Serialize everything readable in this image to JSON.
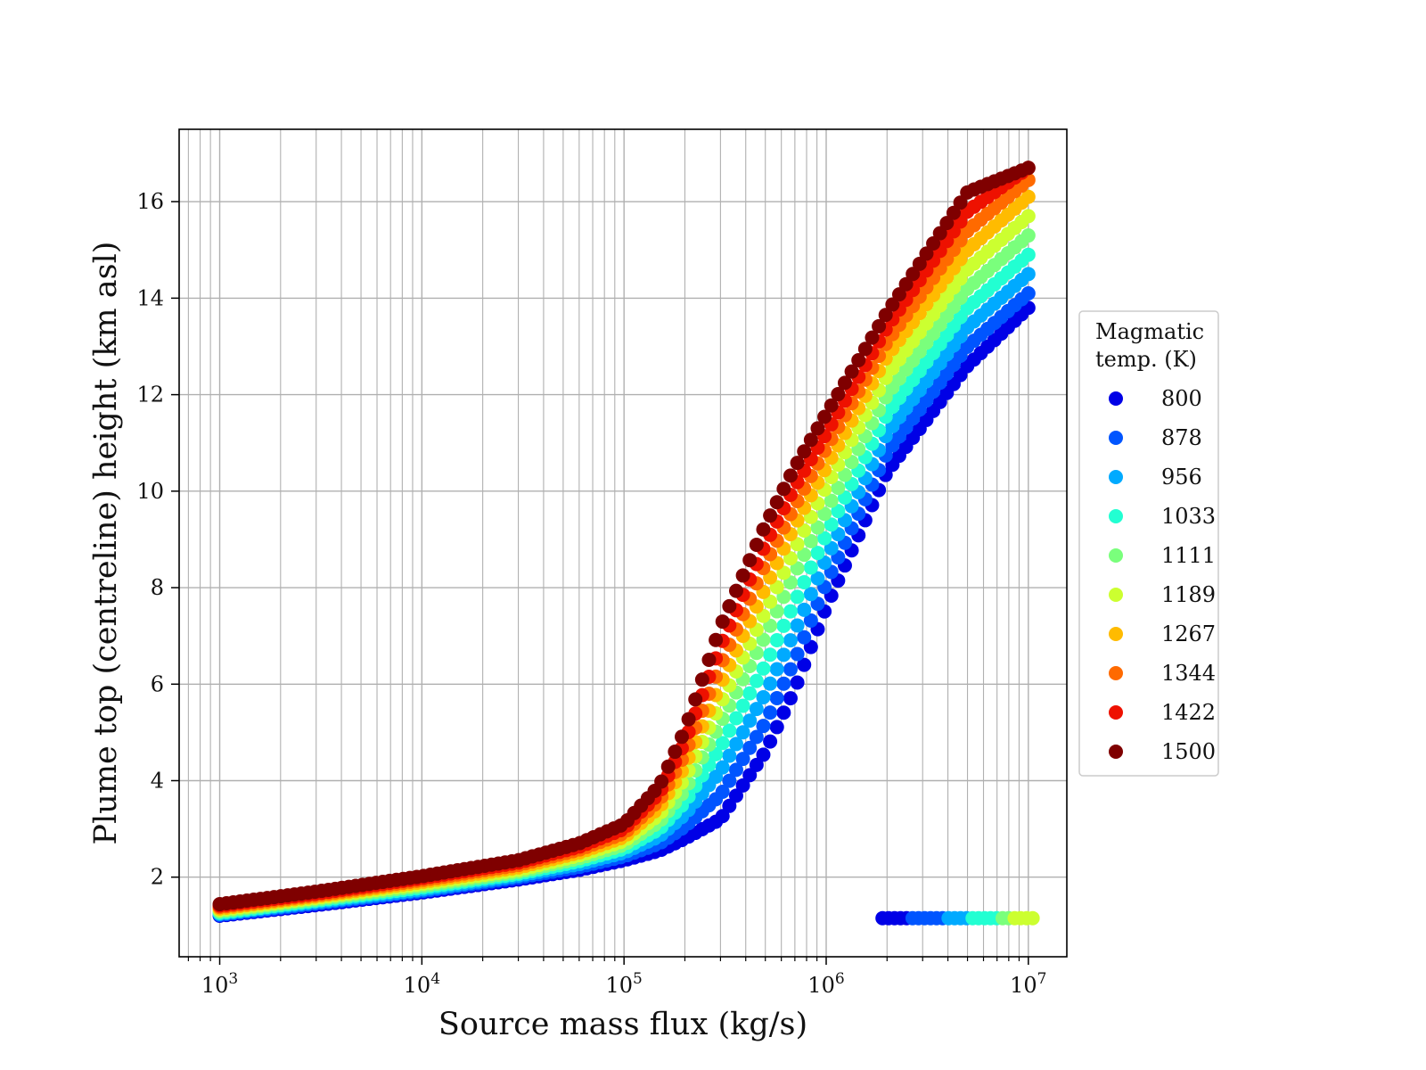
{
  "chart_data": {
    "type": "scatter",
    "title": "",
    "xlabel": "Source mass flux (kg/s)",
    "ylabel": "Plume top (centreline) height (km asl)",
    "x_scale": "log",
    "xlim": [
      630,
      15500000
    ],
    "ylim": [
      0.35,
      17.5
    ],
    "grid": true,
    "x_ticks": [
      {
        "value": 1000,
        "base": "10",
        "exp": "3"
      },
      {
        "value": 10000,
        "base": "10",
        "exp": "4"
      },
      {
        "value": 100000,
        "base": "10",
        "exp": "5"
      },
      {
        "value": 1000000,
        "base": "10",
        "exp": "6"
      },
      {
        "value": 10000000,
        "base": "10",
        "exp": "7"
      }
    ],
    "y_ticks": [
      {
        "value": 2,
        "label": "2"
      },
      {
        "value": 4,
        "label": "4"
      },
      {
        "value": 6,
        "label": "6"
      },
      {
        "value": 8,
        "label": "8"
      },
      {
        "value": 10,
        "label": "10"
      },
      {
        "value": 12,
        "label": "12"
      },
      {
        "value": 14,
        "label": "14"
      },
      {
        "value": 16,
        "label": "16"
      }
    ],
    "legend": {
      "title_lines": [
        "Magmatic",
        "temp. (K)"
      ],
      "placement": "outside-right",
      "entries": [
        {
          "label": "800",
          "color": "#0000e6"
        },
        {
          "label": "878",
          "color": "#0055ff"
        },
        {
          "label": "956",
          "color": "#00aaff"
        },
        {
          "label": "1033",
          "color": "#22ffd2"
        },
        {
          "label": "1111",
          "color": "#7aff7c"
        },
        {
          "label": "1189",
          "color": "#ccff30"
        },
        {
          "label": "1267",
          "color": "#ffbb00"
        },
        {
          "label": "1344",
          "color": "#ff6a00"
        },
        {
          "label": "1422",
          "color": "#ee1100"
        },
        {
          "label": "1500",
          "color": "#7f0000"
        }
      ]
    },
    "curve_points_x": [
      1000,
      3000,
      10000,
      30000,
      60000,
      100000,
      150000,
      200000,
      300000,
      500000,
      700000,
      1000000,
      2000000,
      5000000,
      10000000
    ],
    "series": [
      {
        "name": "800",
        "color": "#0000e6",
        "y": [
          1.2,
          1.42,
          1.68,
          1.95,
          2.15,
          2.35,
          2.55,
          2.8,
          3.2,
          4.6,
          5.9,
          7.6,
          10.4,
          12.6,
          13.8
        ]
      },
      {
        "name": "878",
        "color": "#0055ff",
        "y": [
          1.22,
          1.45,
          1.71,
          1.99,
          2.21,
          2.43,
          2.7,
          3.05,
          3.7,
          5.2,
          6.5,
          8.1,
          10.8,
          13.0,
          14.1
        ]
      },
      {
        "name": "956",
        "color": "#00aaff",
        "y": [
          1.24,
          1.48,
          1.74,
          2.03,
          2.27,
          2.51,
          2.85,
          3.3,
          4.2,
          5.8,
          7.1,
          8.6,
          11.2,
          13.4,
          14.5
        ]
      },
      {
        "name": "1033",
        "color": "#22ffd2",
        "y": [
          1.26,
          1.51,
          1.78,
          2.07,
          2.33,
          2.59,
          3.0,
          3.55,
          4.7,
          6.4,
          7.7,
          9.1,
          11.6,
          13.8,
          14.9
        ]
      },
      {
        "name": "1111",
        "color": "#7aff7c",
        "y": [
          1.29,
          1.54,
          1.82,
          2.11,
          2.39,
          2.67,
          3.15,
          3.8,
          5.2,
          7.0,
          8.3,
          9.6,
          12.0,
          14.2,
          15.3
        ]
      },
      {
        "name": "1189",
        "color": "#ccff30",
        "y": [
          1.32,
          1.57,
          1.86,
          2.15,
          2.45,
          2.75,
          3.3,
          4.05,
          5.6,
          7.5,
          8.8,
          10.1,
          12.4,
          14.6,
          15.7
        ]
      },
      {
        "name": "1267",
        "color": "#ffbb00",
        "y": [
          1.35,
          1.6,
          1.9,
          2.2,
          2.51,
          2.83,
          3.45,
          4.3,
          6.0,
          8.0,
          9.3,
          10.5,
          12.8,
          15.0,
          16.1
        ]
      },
      {
        "name": "1344",
        "color": "#ff6a00",
        "y": [
          1.38,
          1.63,
          1.94,
          2.25,
          2.57,
          2.91,
          3.6,
          4.55,
          6.4,
          8.5,
          9.7,
          10.9,
          13.1,
          15.4,
          16.45
        ]
      },
      {
        "name": "1422",
        "color": "#ee1100",
        "y": [
          1.41,
          1.66,
          1.98,
          2.3,
          2.63,
          3.0,
          3.75,
          4.8,
          6.8,
          8.9,
          10.1,
          11.2,
          13.4,
          15.8,
          16.7
        ]
      },
      {
        "name": "1500",
        "color": "#7f0000",
        "y": [
          1.44,
          1.7,
          2.02,
          2.35,
          2.7,
          3.1,
          3.9,
          5.05,
          7.2,
          9.3,
          10.5,
          11.6,
          13.7,
          16.2,
          16.7
        ]
      }
    ],
    "lower_branch": {
      "y": 1.15,
      "x_start": 1900000,
      "x_end": 10500000,
      "colors_by_x": [
        {
          "x_from": 1900000,
          "color": "#0000e6"
        },
        {
          "x_from": 2500000,
          "color": "#0055ff"
        },
        {
          "x_from": 3800000,
          "color": "#00aaff"
        },
        {
          "x_from": 5000000,
          "color": "#22ffd2"
        },
        {
          "x_from": 7000000,
          "color": "#7aff7c"
        },
        {
          "x_from": 8500000,
          "color": "#ccff30"
        }
      ]
    }
  }
}
